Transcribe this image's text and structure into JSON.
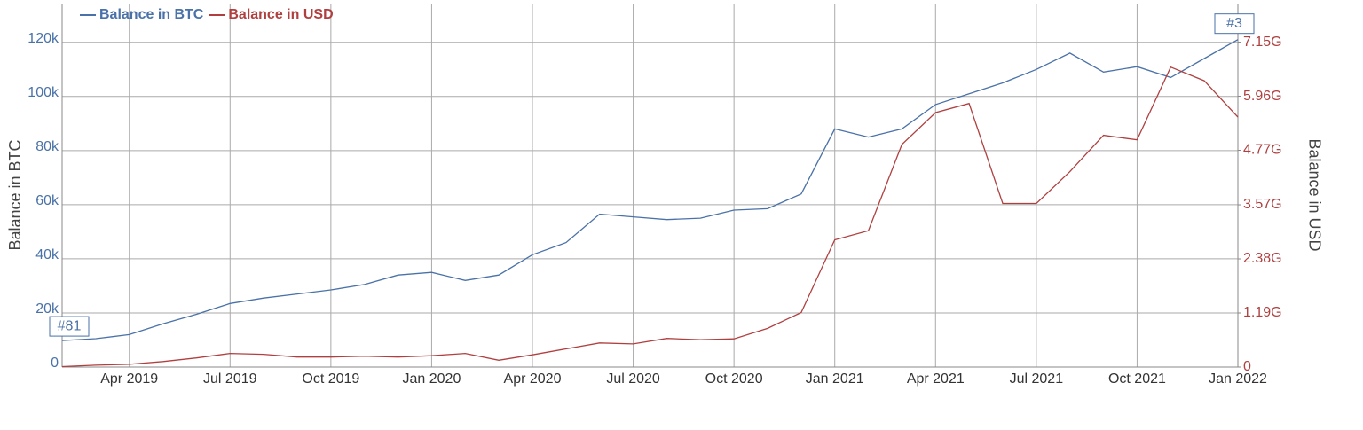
{
  "chart_data": {
    "type": "line",
    "x": [
      "2019-02",
      "2019-03",
      "2019-04",
      "2019-05",
      "2019-06",
      "2019-07",
      "2019-08",
      "2019-09",
      "2019-10",
      "2019-11",
      "2019-12",
      "2020-01",
      "2020-02",
      "2020-03",
      "2020-04",
      "2020-05",
      "2020-06",
      "2020-07",
      "2020-08",
      "2020-09",
      "2020-10",
      "2020-11",
      "2020-12",
      "2021-01",
      "2021-02",
      "2021-03",
      "2021-04",
      "2021-05",
      "2021-06",
      "2021-07",
      "2021-08",
      "2021-09",
      "2021-10",
      "2021-11",
      "2021-12",
      "2022-01"
    ],
    "xlim": [
      "2019-02",
      "2022-01"
    ],
    "xticks": [
      {
        "value": "2019-04",
        "label": "Apr 2019"
      },
      {
        "value": "2019-07",
        "label": "Jul 2019"
      },
      {
        "value": "2019-10",
        "label": "Oct 2019"
      },
      {
        "value": "2020-01",
        "label": "Jan 2020"
      },
      {
        "value": "2020-04",
        "label": "Apr 2020"
      },
      {
        "value": "2020-07",
        "label": "Jul 2020"
      },
      {
        "value": "2020-10",
        "label": "Oct 2020"
      },
      {
        "value": "2021-01",
        "label": "Jan 2021"
      },
      {
        "value": "2021-04",
        "label": "Apr 2021"
      },
      {
        "value": "2021-07",
        "label": "Jul 2021"
      },
      {
        "value": "2021-10",
        "label": "Oct 2021"
      },
      {
        "value": "2022-01",
        "label": "Jan 2022"
      }
    ],
    "y_label": "Balance in BTC",
    "y2_label": "Balance in USD",
    "ylim": [
      0,
      134000
    ],
    "yticks": [
      0,
      {
        "value": 20000,
        "label": "20k"
      },
      {
        "value": 40000,
        "label": "40k"
      },
      {
        "value": 60000,
        "label": "60k"
      },
      {
        "value": 80000,
        "label": "80k"
      },
      {
        "value": 100000,
        "label": "100k"
      },
      {
        "value": 120000,
        "label": "120k"
      }
    ],
    "y2lim": [
      0,
      7980000000
    ],
    "y2ticks": [
      0,
      {
        "value": 1190000000,
        "label": "1.19G"
      },
      {
        "value": 2380000000,
        "label": "2.38G"
      },
      {
        "value": 3570000000,
        "label": "3.57G"
      },
      {
        "value": 4770000000,
        "label": "4.77G"
      },
      {
        "value": 5960000000,
        "label": "5.96G"
      },
      {
        "value": 7150000000,
        "label": "7.15G"
      }
    ],
    "grid": true,
    "series": [
      {
        "name": "Balance in BTC",
        "color": "#4a72a8",
        "values": [
          9800,
          10500,
          12000,
          16000,
          19500,
          23500,
          25500,
          27000,
          28500,
          30500,
          34000,
          35000,
          32000,
          34000,
          41500,
          46000,
          56500,
          55500,
          54500,
          55000,
          58000,
          58500,
          64000,
          88000,
          85000,
          88000,
          97000,
          101000,
          105000,
          110000,
          116000,
          109000,
          111000,
          107000,
          114000,
          121000
        ]
      },
      {
        "name": "Balance in USD",
        "color": "#b04040",
        "axis": "y2",
        "values": [
          10000000,
          40000000,
          60000000,
          120000000,
          200000000,
          300000000,
          280000000,
          220000000,
          220000000,
          240000000,
          220000000,
          250000000,
          300000000,
          150000000,
          270000000,
          400000000,
          530000000,
          510000000,
          630000000,
          600000000,
          620000000,
          850000000,
          1200000000,
          2800000000,
          3000000000,
          4900000000,
          5600000000,
          5800000000,
          3600000000,
          3600000000,
          4300000000,
          5100000000,
          5000000000,
          6600000000,
          6300000000,
          5500000000
        ]
      }
    ],
    "annotations": [
      "#81",
      "#3"
    ]
  }
}
